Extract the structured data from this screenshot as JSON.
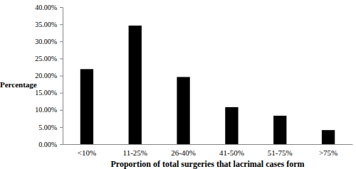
{
  "chart_data": {
    "type": "bar",
    "xlabel": "Proportion of total surgeries that lacrimal cases form",
    "ylabel": "Percentage",
    "categories": [
      "<10%",
      "11-25%",
      "26-40%",
      "41-50%",
      "51-75%",
      ">75%"
    ],
    "values": [
      21.9,
      34.6,
      19.6,
      10.8,
      8.3,
      4.1
    ],
    "color": "#000000",
    "ylim": [
      0,
      40
    ],
    "yticks": [
      {
        "value": 0,
        "label": "0.00%"
      },
      {
        "value": 5,
        "label": "5.00%"
      },
      {
        "value": 10,
        "label": "10.00%"
      },
      {
        "value": 15,
        "label": "15.00%"
      },
      {
        "value": 20,
        "label": "20.00%"
      },
      {
        "value": 25,
        "label": "25.00%"
      },
      {
        "value": 30,
        "label": "30.00%"
      },
      {
        "value": 35,
        "label": "35.00%"
      },
      {
        "value": 40,
        "label": "40.00%"
      }
    ],
    "grid": false
  }
}
